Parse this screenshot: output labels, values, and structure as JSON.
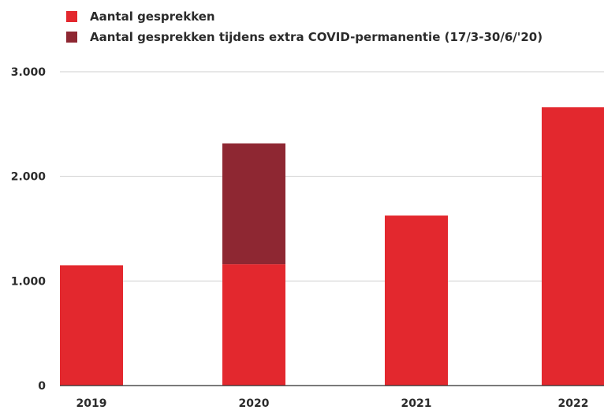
{
  "chart_data": {
    "type": "bar",
    "stacked": true,
    "categories": [
      "2019",
      "2020",
      "2021",
      "2022"
    ],
    "series": [
      {
        "name": "Aantal gesprekken",
        "color": "#e3282e",
        "values": [
          1150,
          1160,
          1625,
          2660
        ]
      },
      {
        "name": "Aantal gesprekken tijdens extra COVID-permanentie (17/3-30/6/'20)",
        "color": "#8e2732",
        "values": [
          0,
          1155,
          0,
          0
        ]
      }
    ],
    "ylim": [
      0,
      3000
    ],
    "yticks": [
      0,
      1000,
      2000,
      3000
    ],
    "ytick_labels": [
      "0",
      "1.000",
      "2.000",
      "3.000"
    ],
    "grid": true,
    "legend_position": "top-left",
    "title": "",
    "xlabel": "",
    "ylabel": ""
  }
}
